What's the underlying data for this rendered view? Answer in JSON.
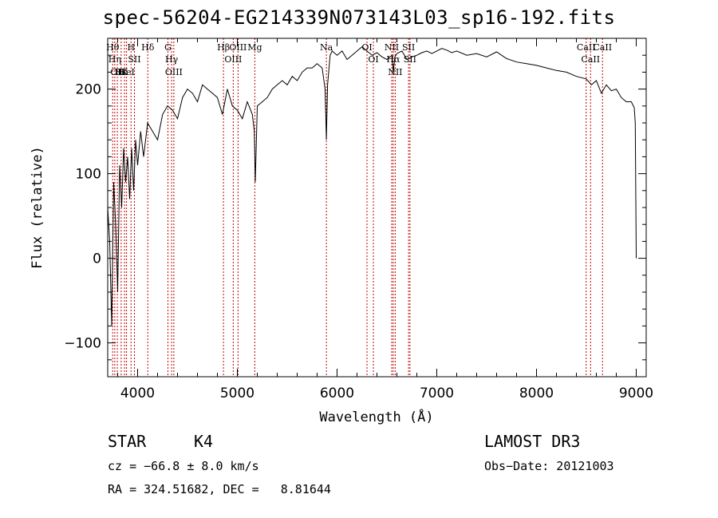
{
  "chart_data": {
    "type": "line",
    "title": "spec-56204-EG214339N073143L03_sp16-192.fits",
    "xlabel": "Wavelength (Å)",
    "ylabel": "Flux (relative)",
    "xlim": [
      3700,
      9100
    ],
    "ylim": [
      -140,
      260
    ],
    "xticks": [
      {
        "value": 4000,
        "label": "4000"
      },
      {
        "value": 5000,
        "label": "5000"
      },
      {
        "value": 6000,
        "label": "6000"
      },
      {
        "value": 7000,
        "label": "7000"
      },
      {
        "value": 8000,
        "label": "8000"
      },
      {
        "value": 9000,
        "label": "9000"
      }
    ],
    "yticks": [
      {
        "value": -100,
        "label": "−100"
      },
      {
        "value": 0,
        "label": "0"
      },
      {
        "value": 100,
        "label": "100"
      },
      {
        "value": 200,
        "label": "200"
      }
    ],
    "series": [
      {
        "name": "flux",
        "color": "#000000",
        "x": [
          3700,
          3720,
          3740,
          3760,
          3780,
          3800,
          3820,
          3840,
          3860,
          3880,
          3900,
          3920,
          3940,
          3960,
          3980,
          4000,
          4030,
          4060,
          4100,
          4150,
          4200,
          4250,
          4300,
          4350,
          4400,
          4450,
          4500,
          4550,
          4600,
          4650,
          4700,
          4750,
          4800,
          4850,
          4900,
          4950,
          5000,
          5050,
          5100,
          5150,
          5170,
          5180,
          5200,
          5250,
          5300,
          5350,
          5400,
          5450,
          5500,
          5550,
          5600,
          5650,
          5700,
          5750,
          5800,
          5850,
          5880,
          5893,
          5905,
          5930,
          5950,
          6000,
          6050,
          6100,
          6150,
          6200,
          6250,
          6300,
          6350,
          6400,
          6450,
          6500,
          6550,
          6563,
          6580,
          6600,
          6650,
          6700,
          6750,
          6800,
          6850,
          6900,
          6950,
          7000,
          7050,
          7100,
          7150,
          7200,
          7300,
          7400,
          7500,
          7600,
          7700,
          7800,
          7900,
          8000,
          8100,
          8200,
          8300,
          8400,
          8500,
          8550,
          8600,
          8650,
          8700,
          8750,
          8800,
          8850,
          8900,
          8950,
          8980,
          8990,
          9000
        ],
        "values": [
          60,
          20,
          -80,
          90,
          40,
          -40,
          110,
          60,
          130,
          90,
          120,
          70,
          130,
          80,
          140,
          110,
          150,
          120,
          160,
          150,
          140,
          170,
          180,
          175,
          165,
          190,
          200,
          195,
          185,
          205,
          200,
          195,
          190,
          170,
          200,
          180,
          175,
          165,
          185,
          170,
          150,
          90,
          180,
          185,
          190,
          200,
          205,
          210,
          205,
          215,
          210,
          220,
          225,
          225,
          230,
          225,
          200,
          140,
          205,
          240,
          245,
          240,
          245,
          235,
          240,
          245,
          250,
          245,
          240,
          243,
          238,
          235,
          240,
          220,
          238,
          242,
          245,
          235,
          238,
          240,
          243,
          245,
          242,
          245,
          248,
          246,
          243,
          245,
          240,
          242,
          238,
          244,
          236,
          232,
          230,
          228,
          225,
          222,
          220,
          215,
          212,
          205,
          210,
          195,
          205,
          198,
          200,
          190,
          185,
          185,
          178,
          160,
          0
        ]
      }
    ],
    "lines": [
      {
        "wave": 3750,
        "label": "Hθ"
      },
      {
        "wave": 3771,
        "label": "Hη"
      },
      {
        "wave": 3797,
        "label": "OII"
      },
      {
        "wave": 3835,
        "label": "Hε"
      },
      {
        "wave": 3869,
        "label": "K"
      },
      {
        "wave": 3889,
        "label": "HeI"
      },
      {
        "wave": 3934,
        "label": "H"
      },
      {
        "wave": 3968,
        "label": "SII"
      },
      {
        "wave": 4102,
        "label": "Hδ"
      },
      {
        "wave": 4304,
        "label": "G"
      },
      {
        "wave": 4341,
        "label": "Hγ"
      },
      {
        "wave": 4363,
        "label": "OIII"
      },
      {
        "wave": 4861,
        "label": "Hβ"
      },
      {
        "wave": 4959,
        "label": "OIII"
      },
      {
        "wave": 5007,
        "label": "OIII"
      },
      {
        "wave": 5175,
        "label": "Mg"
      },
      {
        "wave": 5893,
        "label": "Na"
      },
      {
        "wave": 6300,
        "label": "OI"
      },
      {
        "wave": 6364,
        "label": "OI"
      },
      {
        "wave": 6548,
        "label": "NII"
      },
      {
        "wave": 6563,
        "label": "Hα"
      },
      {
        "wave": 6583,
        "label": "NII"
      },
      {
        "wave": 6717,
        "label": "SII"
      },
      {
        "wave": 6731,
        "label": "SII"
      },
      {
        "wave": 8498,
        "label": "CaII"
      },
      {
        "wave": 8542,
        "label": "CaII"
      },
      {
        "wave": 8662,
        "label": "CaII"
      }
    ]
  },
  "info": {
    "class_label": "STAR",
    "subclass": "K4",
    "survey": "LAMOST DR3",
    "cz": "cz = −66.8 ± 8.0 km/s",
    "obs_date": "Obs−Date: 20121003",
    "coords": "RA = 324.51682, DEC =   8.81644"
  }
}
